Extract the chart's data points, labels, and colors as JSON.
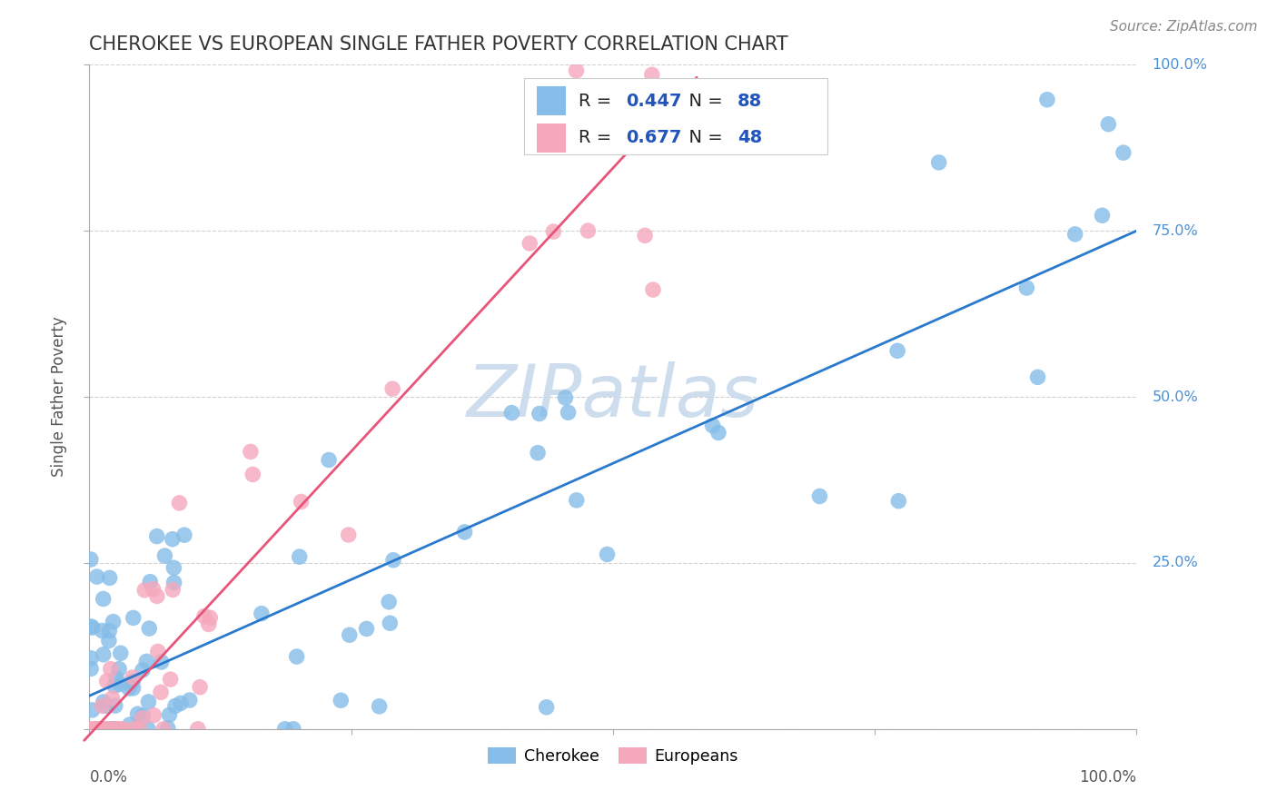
{
  "title": "CHEROKEE VS EUROPEAN SINGLE FATHER POVERTY CORRELATION CHART",
  "source": "Source: ZipAtlas.com",
  "ylabel": "Single Father Poverty",
  "cherokee_R": "0.447",
  "cherokee_N": "88",
  "european_R": "0.677",
  "european_N": "48",
  "cherokee_color": "#85bde8",
  "european_color": "#f5a8bc",
  "cherokee_line_color": "#2979cc",
  "european_line_color": "#e8547a",
  "right_axis_color": "#4a90d9",
  "background_color": "#ffffff",
  "watermark_color": "#c5d8ea",
  "title_color": "#333333",
  "ylabel_color": "#555555",
  "grid_color": "#cccccc",
  "legend_border_color": "#cccccc",
  "source_color": "#888888",
  "tick_label_color": "#555555",
  "r_n_color": "#2255bb"
}
